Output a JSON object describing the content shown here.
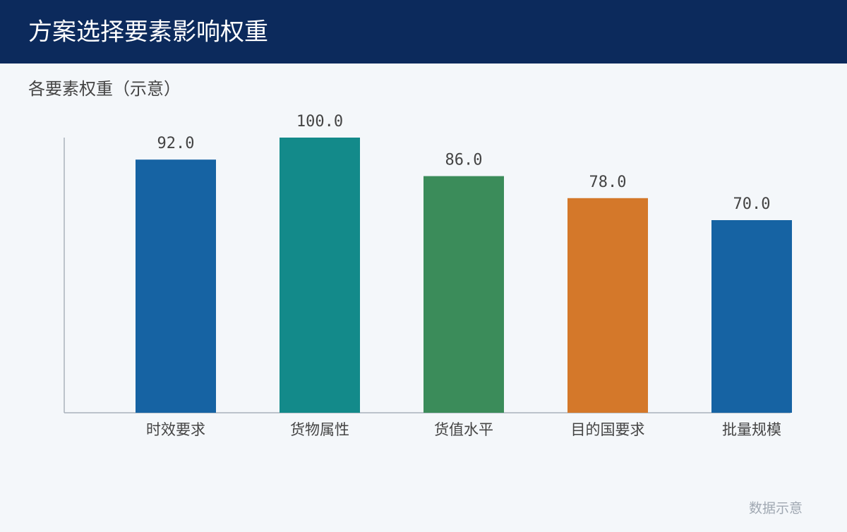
{
  "chart_data": {
    "type": "bar",
    "title": "方案选择要素影响权重",
    "subtitle": "各要素权重（示意）",
    "categories": [
      "时效要求",
      "货物属性",
      "货值水平",
      "目的国要求",
      "批量规模"
    ],
    "values": [
      92,
      100,
      86,
      78,
      70
    ],
    "value_labels": [
      "92.0",
      "100.0",
      "86.0",
      "78.0",
      "70.0"
    ],
    "colors": [
      "#1663a3",
      "#138a8a",
      "#3b8c5a",
      "#d4782a",
      "#1663a3"
    ],
    "ylim": [
      0,
      100
    ],
    "footnote": "数据示意"
  }
}
